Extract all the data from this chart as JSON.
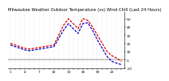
{
  "title": "Milwaukee Weather Outdoor Temperature (vs) Wind Chill (Last 24 Hours)",
  "temp": [
    20,
    18,
    16,
    14,
    13,
    14,
    15,
    16,
    17,
    18,
    30,
    42,
    50,
    44,
    38,
    50,
    48,
    40,
    30,
    20,
    10,
    5,
    2,
    -2
  ],
  "windchill": [
    18,
    16,
    14,
    12,
    11,
    12,
    13,
    14,
    15,
    16,
    26,
    36,
    44,
    38,
    32,
    44,
    45,
    36,
    24,
    14,
    4,
    -2,
    -4,
    -6
  ],
  "temp_color": "#dd0000",
  "windchill_color": "#0000cc",
  "bg_color": "#ffffff",
  "grid_color": "#aaaaaa",
  "ylim": [
    -10,
    58
  ],
  "ytick_vals": [
    50,
    40,
    30,
    20,
    10,
    0,
    -10
  ],
  "ytick_labels": [
    "50",
    "40",
    "30",
    "20",
    "10",
    "0",
    "-10"
  ],
  "n_points": 24,
  "title_fontsize": 3.8,
  "tick_fontsize": 3.2,
  "linewidth": 0.9
}
